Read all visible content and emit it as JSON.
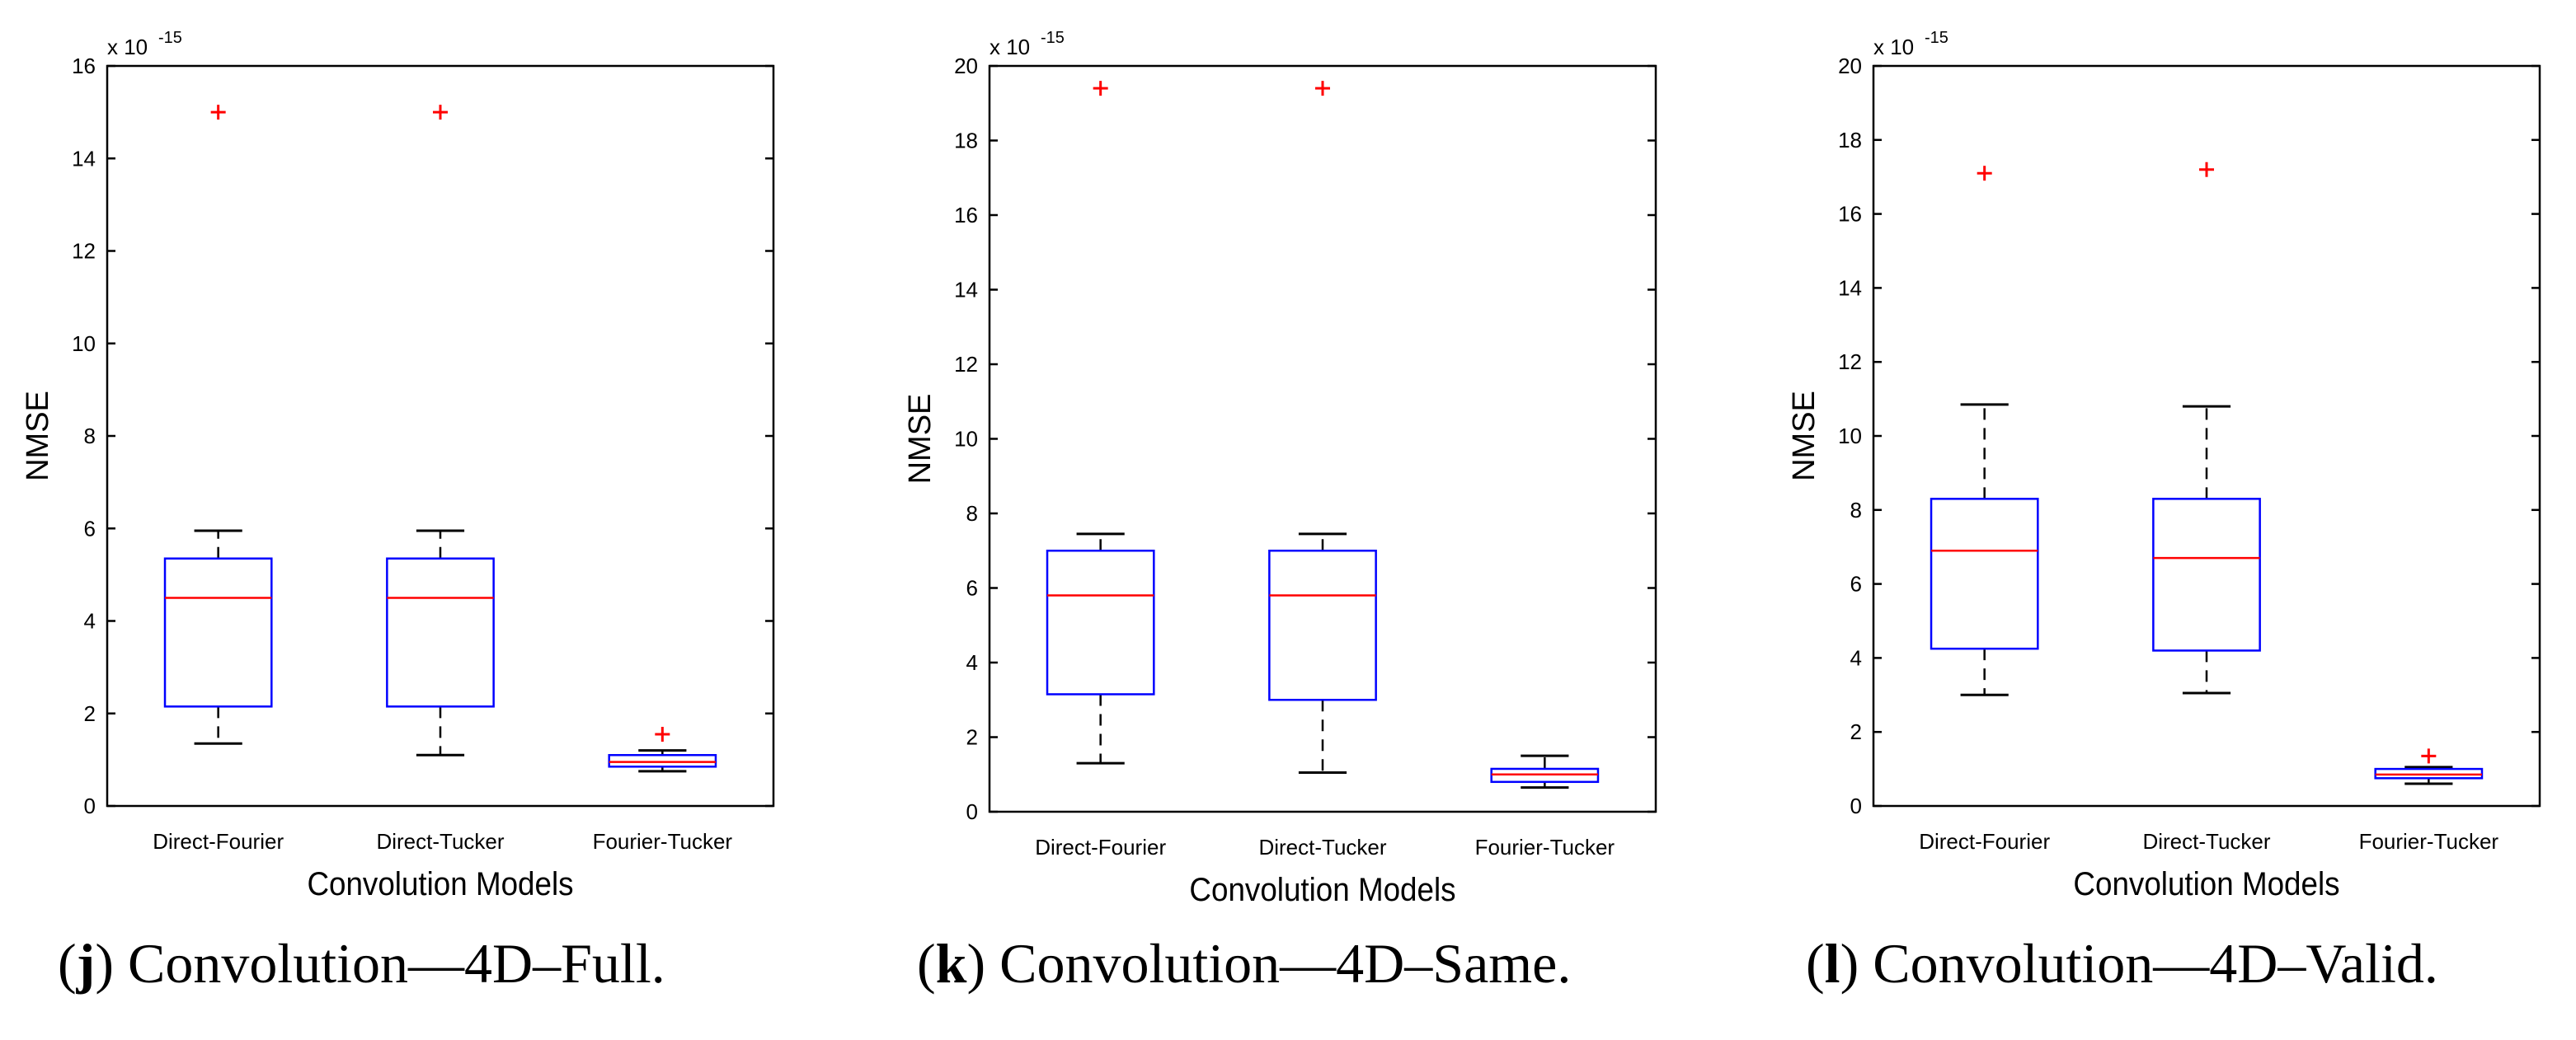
{
  "colors": {
    "box": "#0000ff",
    "median": "#ff0000",
    "outlier": "#ff0000",
    "axis": "#000000",
    "whisker": "#000000"
  },
  "chart_data": [
    {
      "type": "box",
      "caption_letter": "j",
      "caption_text": " Convolution—4D–Full.",
      "xlabel": "Convolution Models",
      "ylabel": "NMSE",
      "exponent": "x 10",
      "exponent_power": "-15",
      "ylim": [
        0,
        16
      ],
      "yticks": [
        "0",
        "2",
        "4",
        "6",
        "8",
        "10",
        "12",
        "14",
        "16"
      ],
      "categories": [
        "Direct-Fourier",
        "Direct-Tucker",
        "Fourier-Tucker"
      ],
      "boxes": [
        {
          "whisker_low": 1.35,
          "q1": 2.15,
          "median": 4.5,
          "q3": 5.35,
          "whisker_high": 5.95,
          "outliers": [
            15.0
          ]
        },
        {
          "whisker_low": 1.1,
          "q1": 2.15,
          "median": 4.5,
          "q3": 5.35,
          "whisker_high": 5.95,
          "outliers": [
            15.0
          ]
        },
        {
          "whisker_low": 0.75,
          "q1": 0.85,
          "median": 0.95,
          "q3": 1.1,
          "whisker_high": 1.2,
          "outliers": [
            1.55
          ]
        }
      ]
    },
    {
      "type": "box",
      "caption_letter": "k",
      "caption_text": " Convolution—4D–Same.",
      "xlabel": "Convolution Models",
      "ylabel": "NMSE",
      "exponent": "x 10",
      "exponent_power": "-15",
      "ylim": [
        0,
        20
      ],
      "yticks": [
        "0",
        "2",
        "4",
        "6",
        "8",
        "10",
        "12",
        "14",
        "16",
        "18",
        "20"
      ],
      "categories": [
        "Direct-Fourier",
        "Direct-Tucker",
        "Fourier-Tucker"
      ],
      "boxes": [
        {
          "whisker_low": 1.3,
          "q1": 3.15,
          "median": 5.8,
          "q3": 7.0,
          "whisker_high": 7.45,
          "outliers": [
            19.4
          ]
        },
        {
          "whisker_low": 1.05,
          "q1": 3.0,
          "median": 5.8,
          "q3": 7.0,
          "whisker_high": 7.45,
          "outliers": [
            19.4
          ]
        },
        {
          "whisker_low": 0.65,
          "q1": 0.8,
          "median": 1.0,
          "q3": 1.15,
          "whisker_high": 1.5,
          "outliers": []
        }
      ]
    },
    {
      "type": "box",
      "caption_letter": "l",
      "caption_text": " Convolution—4D–Valid.",
      "xlabel": "Convolution Models",
      "ylabel": "NMSE",
      "exponent": "x 10",
      "exponent_power": "-15",
      "ylim": [
        0,
        20
      ],
      "yticks": [
        "0",
        "2",
        "4",
        "6",
        "8",
        "10",
        "12",
        "14",
        "16",
        "18",
        "20"
      ],
      "categories": [
        "Direct-Fourier",
        "Direct-Tucker",
        "Fourier-Tucker"
      ],
      "boxes": [
        {
          "whisker_low": 3.0,
          "q1": 4.25,
          "median": 6.9,
          "q3": 8.3,
          "whisker_high": 10.85,
          "outliers": [
            17.1
          ]
        },
        {
          "whisker_low": 3.05,
          "q1": 4.2,
          "median": 6.7,
          "q3": 8.3,
          "whisker_high": 10.8,
          "outliers": [
            17.2
          ]
        },
        {
          "whisker_low": 0.6,
          "q1": 0.75,
          "median": 0.85,
          "q3": 1.0,
          "whisker_high": 1.05,
          "outliers": [
            1.35
          ]
        }
      ]
    }
  ]
}
